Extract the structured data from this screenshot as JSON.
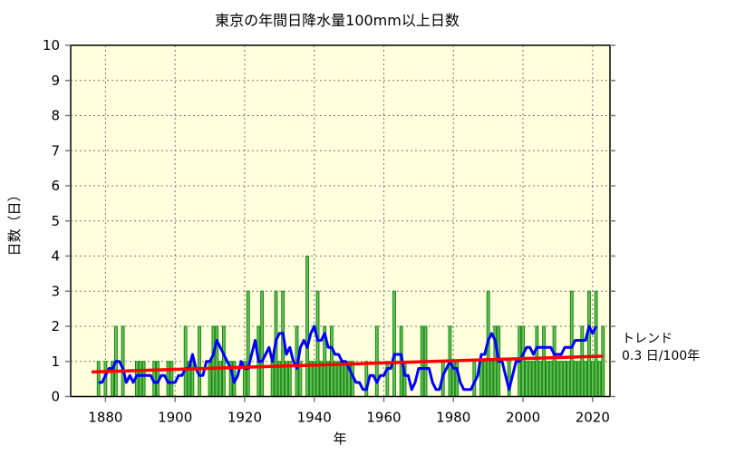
{
  "chart_data": {
    "type": "bar",
    "title": "東京の年間日降水量100mm以上日数",
    "xlabel": "年",
    "ylabel": "日数（日）",
    "xlim": [
      1870,
      2025
    ],
    "ylim": [
      0,
      10
    ],
    "x_ticks": [
      1880,
      1900,
      1920,
      1940,
      1960,
      1980,
      2000,
      2020
    ],
    "y_ticks": [
      0,
      1,
      2,
      3,
      4,
      5,
      6,
      7,
      8,
      9,
      10
    ],
    "grid": true,
    "start_year": 1876,
    "values": [
      0,
      0,
      1,
      0,
      1,
      0,
      1,
      2,
      0,
      2,
      0,
      0,
      0,
      1,
      1,
      1,
      0,
      0,
      1,
      1,
      0,
      0,
      1,
      1,
      0,
      0,
      0,
      2,
      1,
      1,
      0,
      2,
      0,
      0,
      1,
      2,
      2,
      1,
      2,
      0,
      1,
      1,
      0,
      0,
      1,
      3,
      0,
      0,
      2,
      3,
      0,
      0,
      1,
      3,
      1,
      3,
      1,
      1,
      0,
      2,
      1,
      0,
      4,
      1,
      1,
      3,
      1,
      2,
      1,
      2,
      1,
      1,
      1,
      1,
      1,
      1,
      0,
      0,
      0,
      1,
      0,
      0,
      2,
      0,
      0,
      1,
      0,
      3,
      0,
      2,
      1,
      0,
      0,
      0,
      0,
      2,
      2,
      0,
      0,
      0,
      0,
      1,
      0,
      2,
      1,
      1,
      0,
      0,
      0,
      0,
      1,
      0,
      1,
      1,
      3,
      1,
      2,
      2,
      0,
      0,
      1,
      0,
      0,
      2,
      2,
      1,
      1,
      1,
      2,
      1,
      2,
      1,
      1,
      2,
      1,
      1,
      1,
      1,
      3,
      1,
      1,
      2,
      1,
      3,
      1,
      3,
      1,
      2
    ],
    "moving_average_window": 5,
    "trend": {
      "start": [
        1876,
        0.7
      ],
      "end": [
        2023,
        1.15
      ],
      "label": "トレンド",
      "rate": "0.3 日/100年"
    },
    "colors": {
      "bar_fill": "#6cc05c",
      "bar_edge": "#118811",
      "moving_average": "#0000ff",
      "trend": "#ff0000",
      "plot_bg": "#ffffdd"
    }
  }
}
